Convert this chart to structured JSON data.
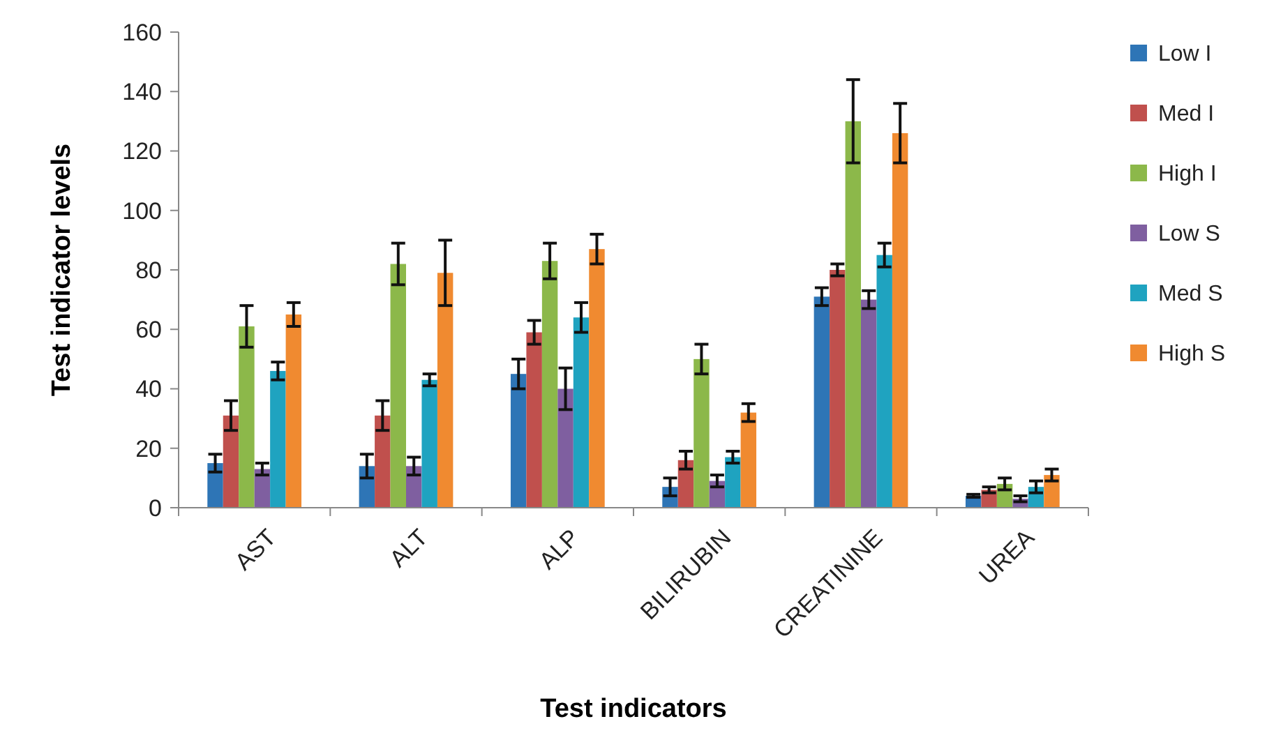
{
  "chart_data": {
    "type": "bar",
    "xlabel": "Test indicators",
    "ylabel": "Test indicator levels",
    "categories": [
      "AST",
      "ALT",
      "ALP",
      "BILIRUBIN",
      "CREATININE",
      "UREA"
    ],
    "series": [
      {
        "name": "Low I",
        "color": "#2e75b6",
        "values": [
          15,
          14,
          45,
          7,
          71,
          4
        ],
        "errors": [
          3,
          4,
          5,
          3,
          3,
          0.5
        ]
      },
      {
        "name": "Med I",
        "color": "#c0504d",
        "values": [
          31,
          31,
          59,
          16,
          80,
          6
        ],
        "errors": [
          5,
          5,
          4,
          3,
          2,
          1
        ]
      },
      {
        "name": "High I",
        "color": "#8cb84a",
        "values": [
          61,
          82,
          83,
          50,
          130,
          8
        ],
        "errors": [
          7,
          7,
          6,
          5,
          14,
          2
        ]
      },
      {
        "name": "Low S",
        "color": "#7f5fa0",
        "values": [
          13,
          14,
          40,
          9,
          70,
          3
        ],
        "errors": [
          2,
          3,
          7,
          2,
          3,
          1
        ]
      },
      {
        "name": "Med S",
        "color": "#1fa3c0",
        "values": [
          46,
          43,
          64,
          17,
          85,
          7
        ],
        "errors": [
          3,
          2,
          5,
          2,
          4,
          2
        ]
      },
      {
        "name": "High S",
        "color": "#f08a30",
        "values": [
          65,
          79,
          87,
          32,
          126,
          11
        ],
        "errors": [
          4,
          11,
          5,
          3,
          10,
          2
        ]
      }
    ],
    "ylim": [
      0,
      160
    ],
    "yticks": [
      0,
      20,
      40,
      60,
      80,
      100,
      120,
      140,
      160
    ],
    "grid": false,
    "legend": "right"
  }
}
